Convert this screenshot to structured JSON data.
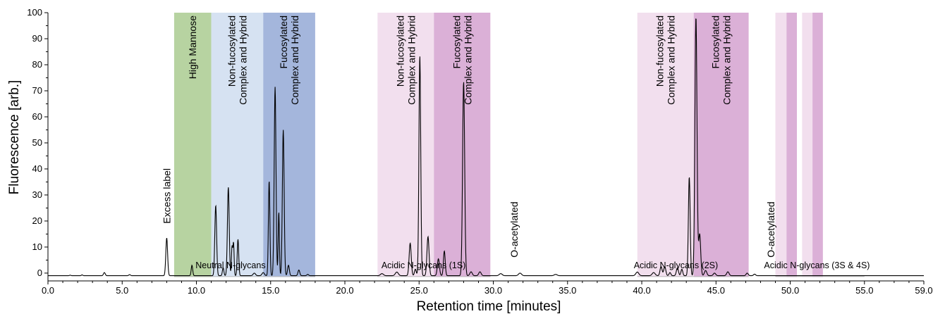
{
  "chart_data": {
    "type": "line",
    "xlabel": "Retention time [minutes]",
    "ylabel": "Fluorescence [arb.]",
    "xlim": [
      0,
      59
    ],
    "ylim": [
      -3,
      100
    ],
    "x_ticks": [
      0,
      5,
      10,
      15,
      20,
      25,
      30,
      35,
      40,
      45,
      50,
      55,
      59
    ],
    "x_tick_labels": [
      "0.0",
      "5.0",
      "10.0",
      "15.0",
      "20.0",
      "25.0",
      "30.0",
      "35.0",
      "40.0",
      "45.0",
      "50.0",
      "55.0",
      "59.0"
    ],
    "y_ticks": [
      0,
      10,
      20,
      30,
      40,
      50,
      60,
      70,
      80,
      90,
      100
    ],
    "y_tick_labels": [
      "0",
      "10",
      "20",
      "30",
      "40",
      "50",
      "60",
      "70",
      "80",
      "90",
      "100"
    ],
    "baseline": -1,
    "grid": false,
    "peaks": [
      {
        "x": 1.5,
        "y": 0.2,
        "w": 0.05
      },
      {
        "x": 2.3,
        "y": 0.3,
        "w": 0.05
      },
      {
        "x": 3.8,
        "y": 1.2,
        "w": 0.06
      },
      {
        "x": 5.5,
        "y": 0.4,
        "w": 0.06
      },
      {
        "x": 8.0,
        "y": 14.5,
        "w": 0.06
      },
      {
        "x": 9.7,
        "y": 4.0,
        "w": 0.05
      },
      {
        "x": 11.3,
        "y": 27.0,
        "w": 0.06
      },
      {
        "x": 11.8,
        "y": 3.0,
        "w": 0.05
      },
      {
        "x": 12.15,
        "y": 34.0,
        "w": 0.06
      },
      {
        "x": 12.4,
        "y": 11.0,
        "w": 0.04
      },
      {
        "x": 12.5,
        "y": 12.5,
        "w": 0.04
      },
      {
        "x": 12.8,
        "y": 14.0,
        "w": 0.05
      },
      {
        "x": 13.9,
        "y": 1.0,
        "w": 0.08
      },
      {
        "x": 14.5,
        "y": 1.2,
        "w": 0.08
      },
      {
        "x": 14.9,
        "y": 36.5,
        "w": 0.05
      },
      {
        "x": 15.3,
        "y": 72.5,
        "w": 0.06
      },
      {
        "x": 15.55,
        "y": 24.5,
        "w": 0.04
      },
      {
        "x": 15.85,
        "y": 56.0,
        "w": 0.06
      },
      {
        "x": 16.2,
        "y": 4.0,
        "w": 0.06
      },
      {
        "x": 16.9,
        "y": 2.2,
        "w": 0.06
      },
      {
        "x": 17.5,
        "y": 0.5,
        "w": 0.06
      },
      {
        "x": 22.5,
        "y": 0.8,
        "w": 0.1
      },
      {
        "x": 23.5,
        "y": 1.4,
        "w": 0.1
      },
      {
        "x": 24.4,
        "y": 12.5,
        "w": 0.07
      },
      {
        "x": 24.75,
        "y": 2.5,
        "w": 0.06
      },
      {
        "x": 25.05,
        "y": 84.5,
        "w": 0.06
      },
      {
        "x": 25.6,
        "y": 15.0,
        "w": 0.07
      },
      {
        "x": 26.3,
        "y": 6.5,
        "w": 0.07
      },
      {
        "x": 26.7,
        "y": 9.5,
        "w": 0.06
      },
      {
        "x": 28.0,
        "y": 74.5,
        "w": 0.07
      },
      {
        "x": 28.5,
        "y": 1.5,
        "w": 0.08
      },
      {
        "x": 29.1,
        "y": 1.5,
        "w": 0.08
      },
      {
        "x": 30.5,
        "y": 0.8,
        "w": 0.1
      },
      {
        "x": 31.8,
        "y": 1.0,
        "w": 0.1
      },
      {
        "x": 34.2,
        "y": 0.5,
        "w": 0.1
      },
      {
        "x": 39.7,
        "y": 1.4,
        "w": 0.1
      },
      {
        "x": 40.8,
        "y": 1.2,
        "w": 0.1
      },
      {
        "x": 41.3,
        "y": 3.5,
        "w": 0.07
      },
      {
        "x": 41.55,
        "y": 3.5,
        "w": 0.07
      },
      {
        "x": 41.9,
        "y": 1.2,
        "w": 0.06
      },
      {
        "x": 42.4,
        "y": 3.0,
        "w": 0.07
      },
      {
        "x": 42.7,
        "y": 2.5,
        "w": 0.06
      },
      {
        "x": 43.2,
        "y": 38.0,
        "w": 0.06
      },
      {
        "x": 43.65,
        "y": 99.5,
        "w": 0.07
      },
      {
        "x": 43.9,
        "y": 16.0,
        "w": 0.07
      },
      {
        "x": 44.3,
        "y": 2.0,
        "w": 0.08
      },
      {
        "x": 44.9,
        "y": 1.0,
        "w": 0.08
      },
      {
        "x": 45.8,
        "y": 1.5,
        "w": 0.08
      },
      {
        "x": 47.1,
        "y": 1.0,
        "w": 0.07
      },
      {
        "x": 47.6,
        "y": 0.6,
        "w": 0.07
      }
    ],
    "regions": [
      {
        "x0": 8.5,
        "x1": 11.0,
        "color": "#b7d3a1",
        "label": "High Mannose"
      },
      {
        "x0": 11.0,
        "x1": 14.5,
        "color": "#d6e2f2",
        "label": "Non-fucosylated\nComplex and Hybrid"
      },
      {
        "x0": 14.5,
        "x1": 18.0,
        "color": "#a4b6dc",
        "label": "Fucosylated\nComplex and Hybrid"
      },
      {
        "x0": 22.2,
        "x1": 26.0,
        "color": "#f2dfee",
        "label": "Non-fucosylated\nComplex and Hybrid"
      },
      {
        "x0": 26.0,
        "x1": 29.8,
        "color": "#dbb0d7",
        "label": "Fucosylated\nComplex and Hybrid"
      },
      {
        "x0": 39.7,
        "x1": 43.5,
        "color": "#f2dfee",
        "label": "Non-fucosylated\nComplex and Hybrid"
      },
      {
        "x0": 43.5,
        "x1": 47.2,
        "color": "#dbb0d7",
        "label": "Fucosylated\nComplex and Hybrid"
      },
      {
        "x0": 49.0,
        "x1": 49.75,
        "color": "#f2dfee",
        "label": ""
      },
      {
        "x0": 49.75,
        "x1": 50.45,
        "color": "#dbb0d7",
        "label": ""
      },
      {
        "x0": 50.8,
        "x1": 51.5,
        "color": "#f2dfee",
        "label": ""
      },
      {
        "x0": 51.5,
        "x1": 52.2,
        "color": "#dbb0d7",
        "label": ""
      }
    ],
    "group_labels": [
      {
        "x": 12.3,
        "text": "Neutral N-glycans"
      },
      {
        "x": 25.3,
        "text": "Acidic N-glycans (1S)"
      },
      {
        "x": 42.3,
        "text": "Acidic N-glycans (2S)"
      },
      {
        "x": 51.8,
        "text": "Acidic N-glycans (3S & 4S)"
      }
    ],
    "group_lines": [
      {
        "x0": 8.5,
        "x1": 18.0
      },
      {
        "x0": 22.2,
        "x1": 29.8
      },
      {
        "x0": 39.7,
        "x1": 47.2
      },
      {
        "x0": 49.0,
        "x1": 55.0
      }
    ],
    "annotations": [
      {
        "x": 8.0,
        "y": 19,
        "text": "Excess label"
      },
      {
        "x": 31.4,
        "y": 6,
        "text": "O-acetylated"
      },
      {
        "x": 48.7,
        "y": 6,
        "text": "O-acetylated"
      }
    ]
  }
}
